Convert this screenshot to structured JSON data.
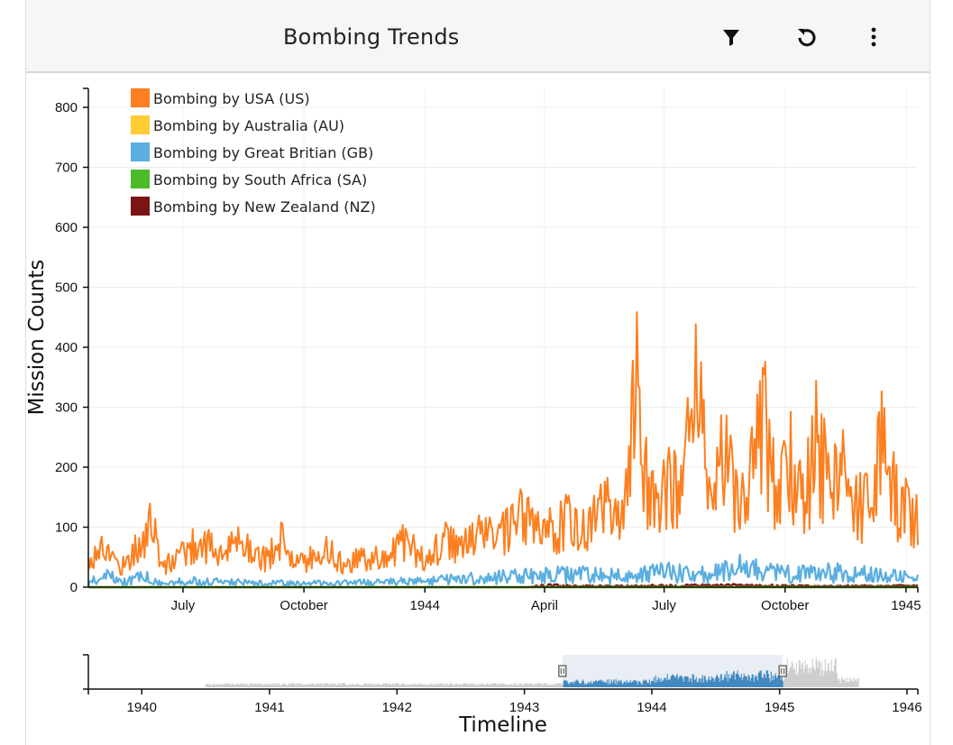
{
  "header": {
    "title": "Bombing Trends",
    "icons": [
      "filter-icon",
      "reset-icon",
      "more-vert-icon"
    ]
  },
  "chart_data": [
    {
      "type": "line",
      "title": "",
      "ylabel": "Mission Counts",
      "xlabel": "",
      "ylim": [
        0,
        830
      ],
      "yticks": [
        0,
        100,
        200,
        300,
        400,
        500,
        600,
        700,
        800
      ],
      "xlim": [
        "1943-04-20",
        "1945-01-10"
      ],
      "xticks": [
        {
          "date": "1943-07-01",
          "label": "July"
        },
        {
          "date": "1943-10-01",
          "label": "October"
        },
        {
          "date": "1944-01-01",
          "label": "1944"
        },
        {
          "date": "1944-04-01",
          "label": "April"
        },
        {
          "date": "1944-07-01",
          "label": "July"
        },
        {
          "date": "1944-10-01",
          "label": "October"
        },
        {
          "date": "1945-01-01",
          "label": "1945"
        }
      ],
      "grid": true,
      "legend_position": "top-left",
      "series": [
        {
          "name": "Bombing by USA (US)",
          "color": "#fd7f1f",
          "points": [
            [
              "1943-04-20",
              50
            ],
            [
              "1943-05-01",
              80
            ],
            [
              "1943-05-15",
              40
            ],
            [
              "1943-06-01",
              90
            ],
            [
              "1943-06-08",
              130
            ],
            [
              "1943-06-15",
              35
            ],
            [
              "1943-07-01",
              70
            ],
            [
              "1943-07-15",
              90
            ],
            [
              "1943-08-01",
              60
            ],
            [
              "1943-08-15",
              100
            ],
            [
              "1943-09-01",
              55
            ],
            [
              "1943-09-15",
              90
            ],
            [
              "1943-10-01",
              45
            ],
            [
              "1943-10-15",
              80
            ],
            [
              "1943-11-01",
              40
            ],
            [
              "1943-11-15",
              60
            ],
            [
              "1943-12-01",
              55
            ],
            [
              "1943-12-15",
              95
            ],
            [
              "1944-01-01",
              50
            ],
            [
              "1944-01-15",
              90
            ],
            [
              "1944-02-01",
              80
            ],
            [
              "1944-02-15",
              110
            ],
            [
              "1944-03-01",
              100
            ],
            [
              "1944-03-15",
              135
            ],
            [
              "1944-04-01",
              95
            ],
            [
              "1944-04-15",
              135
            ],
            [
              "1944-05-01",
              110
            ],
            [
              "1944-05-15",
              155
            ],
            [
              "1944-06-01",
              140
            ],
            [
              "1944-06-10",
              385
            ],
            [
              "1944-06-20",
              150
            ],
            [
              "1944-07-01",
              200
            ],
            [
              "1944-07-15",
              175
            ],
            [
              "1944-07-25",
              385
            ],
            [
              "1944-08-05",
              165
            ],
            [
              "1944-08-15",
              285
            ],
            [
              "1944-08-25",
              155
            ],
            [
              "1944-09-05",
              205
            ],
            [
              "1944-09-15",
              320
            ],
            [
              "1944-09-25",
              165
            ],
            [
              "1944-10-05",
              250
            ],
            [
              "1944-10-15",
              155
            ],
            [
              "1944-10-25",
              280
            ],
            [
              "1944-11-05",
              175
            ],
            [
              "1944-11-15",
              230
            ],
            [
              "1944-11-25",
              145
            ],
            [
              "1944-12-05",
              200
            ],
            [
              "1944-12-15",
              290
            ],
            [
              "1944-12-25",
              165
            ],
            [
              "1945-01-10",
              130
            ]
          ]
        },
        {
          "name": "Bombing by Australia (AU)",
          "color": "#ffcc33",
          "points": [
            [
              "1943-04-20",
              0
            ],
            [
              "1945-01-10",
              0
            ]
          ]
        },
        {
          "name": "Bombing by Great Britian (GB)",
          "color": "#5aaee0",
          "points": [
            [
              "1943-04-20",
              5
            ],
            [
              "1943-05-01",
              35
            ],
            [
              "1943-05-15",
              10
            ],
            [
              "1943-06-01",
              25
            ],
            [
              "1943-06-15",
              8
            ],
            [
              "1943-07-01",
              15
            ],
            [
              "1943-08-01",
              12
            ],
            [
              "1943-09-01",
              10
            ],
            [
              "1943-10-01",
              9
            ],
            [
              "1943-11-01",
              10
            ],
            [
              "1943-12-01",
              12
            ],
            [
              "1944-01-01",
              15
            ],
            [
              "1944-02-01",
              20
            ],
            [
              "1944-03-01",
              25
            ],
            [
              "1944-04-01",
              28
            ],
            [
              "1944-05-01",
              30
            ],
            [
              "1944-06-01",
              25
            ],
            [
              "1944-07-01",
              35
            ],
            [
              "1944-08-01",
              30
            ],
            [
              "1944-09-01",
              50
            ],
            [
              "1944-10-01",
              30
            ],
            [
              "1944-11-01",
              35
            ],
            [
              "1944-12-01",
              30
            ],
            [
              "1945-01-10",
              20
            ]
          ]
        },
        {
          "name": "Bombing by South Africa (SA)",
          "color": "#4cbb2a",
          "points": [
            [
              "1943-04-20",
              0
            ],
            [
              "1945-01-10",
              0
            ]
          ]
        },
        {
          "name": "Bombing by New Zealand (NZ)",
          "color": "#7b1414",
          "points": [
            [
              "1943-04-20",
              0
            ],
            [
              "1944-03-20",
              0
            ],
            [
              "1944-04-01",
              4
            ],
            [
              "1944-05-01",
              2
            ],
            [
              "1944-07-01",
              3
            ],
            [
              "1944-09-01",
              4
            ],
            [
              "1944-11-01",
              2
            ],
            [
              "1945-01-10",
              3
            ]
          ]
        }
      ]
    },
    {
      "type": "area",
      "xlabel": "Timeline",
      "xlim": [
        "1939-08-01",
        "1946-02-01"
      ],
      "xticks": [
        {
          "date": "1940-01-01",
          "label": "1940"
        },
        {
          "date": "1941-01-01",
          "label": "1941"
        },
        {
          "date": "1942-01-01",
          "label": "1942"
        },
        {
          "date": "1943-01-01",
          "label": "1943"
        },
        {
          "date": "1944-01-01",
          "label": "1944"
        },
        {
          "date": "1945-01-01",
          "label": "1945"
        },
        {
          "date": "1946-01-01",
          "label": "1946"
        }
      ],
      "brush_selection": [
        "1943-04-20",
        "1945-01-10"
      ],
      "data_range": [
        "1940-07-01",
        "1945-08-15"
      ],
      "colors": {
        "selected": "#2b7bba",
        "unselected": "#c8c8c8",
        "brush": "#e8eef4"
      }
    }
  ]
}
